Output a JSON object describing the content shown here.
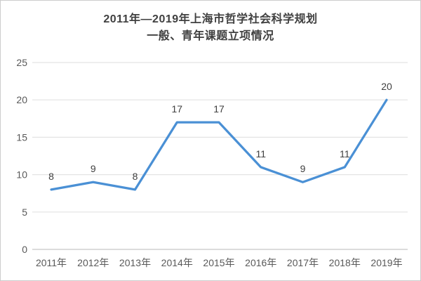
{
  "window": {
    "background": "#ffffff",
    "border_color": "#cccccc"
  },
  "chart_data": {
    "type": "line",
    "title": "2011年—2019年上海市哲学社会科学规划 一般、青年课题立项情况",
    "title_lines": [
      "2011年—2019年上海市哲学社会科学规划",
      "一般、青年课题立项情况"
    ],
    "categories": [
      "2011年",
      "2012年",
      "2013年",
      "2014年",
      "2015年",
      "2016年",
      "2017年",
      "2018年",
      "2019年"
    ],
    "values": [
      8,
      9,
      8,
      17,
      17,
      11,
      9,
      11,
      20
    ],
    "xlabel": "",
    "ylabel": "",
    "ylim": [
      0,
      25
    ],
    "yticks": [
      0,
      5,
      10,
      15,
      20,
      25
    ],
    "grid": "horizontal",
    "legend": "none",
    "data_labels": true,
    "colors": {
      "line": "#4a90d5",
      "gridline": "#e3e3e3",
      "axis_line": "#c6c6c6",
      "tick_label": "#595959",
      "data_label": "#3f3f3f",
      "title": "#404040"
    }
  }
}
